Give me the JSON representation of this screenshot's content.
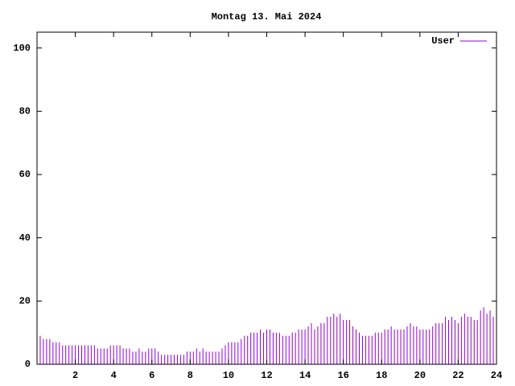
{
  "chart_data": {
    "type": "impulses",
    "title": "Montag 13. Mai 2024",
    "series": [
      {
        "name": "User",
        "color": "#9400d3",
        "x": [
          0,
          0.1667,
          0.3333,
          0.5,
          0.6667,
          0.8333,
          1,
          1.1667,
          1.3333,
          1.5,
          1.6667,
          1.8333,
          2,
          2.1667,
          2.3333,
          2.5,
          2.6667,
          2.8333,
          3,
          3.1667,
          3.3333,
          3.5,
          3.6667,
          3.8333,
          4,
          4.1667,
          4.3333,
          4.5,
          4.6667,
          4.8333,
          5,
          5.1667,
          5.3333,
          5.5,
          5.6667,
          5.8333,
          6,
          6.1667,
          6.3333,
          6.5,
          6.6667,
          6.8333,
          7,
          7.1667,
          7.3333,
          7.5,
          7.6667,
          7.8333,
          8,
          8.1667,
          8.3333,
          8.5,
          8.6667,
          8.8333,
          9,
          9.1667,
          9.3333,
          9.5,
          9.6667,
          9.8333,
          10,
          10.1667,
          10.3333,
          10.5,
          10.6667,
          10.8333,
          11,
          11.1667,
          11.3333,
          11.5,
          11.6667,
          11.8333,
          12,
          12.1667,
          12.3333,
          12.5,
          12.6667,
          12.8333,
          13,
          13.1667,
          13.3333,
          13.5,
          13.6667,
          13.8333,
          14,
          14.1667,
          14.3333,
          14.5,
          14.6667,
          14.8333,
          15,
          15.1667,
          15.3333,
          15.5,
          15.6667,
          15.8333,
          16,
          16.1667,
          16.3333,
          16.5,
          16.6667,
          16.8333,
          17,
          17.1667,
          17.3333,
          17.5,
          17.6667,
          17.8333,
          18,
          18.1667,
          18.3333,
          18.5,
          18.6667,
          18.8333,
          19,
          19.1667,
          19.3333,
          19.5,
          19.6667,
          19.8333,
          20,
          20.1667,
          20.3333,
          20.5,
          20.6667,
          20.8333,
          21,
          21.1667,
          21.3333,
          21.5,
          21.6667,
          21.8333,
          22,
          22.1667,
          22.3333,
          22.5,
          22.6667,
          22.8333,
          23,
          23.1667,
          23.3333,
          23.5,
          23.6667,
          23.8333
        ],
        "values": [
          11,
          9,
          8,
          8,
          8,
          7,
          7,
          7,
          6,
          6,
          6,
          6,
          6,
          6,
          6,
          6,
          6,
          6,
          6,
          5,
          5,
          5,
          5,
          6,
          6,
          6,
          6,
          5,
          5,
          5,
          4,
          4,
          5,
          4,
          4,
          5,
          5,
          5,
          4,
          3,
          3,
          3,
          3,
          3,
          3,
          3,
          3,
          4,
          4,
          4,
          5,
          4,
          5,
          4,
          4,
          4,
          4,
          4,
          5,
          6,
          7,
          7,
          7,
          7,
          8,
          9,
          9,
          10,
          10,
          10,
          11,
          10,
          11,
          11,
          10,
          10,
          10,
          9,
          9,
          9,
          10,
          10,
          11,
          11,
          11,
          12,
          13,
          11,
          12,
          13,
          13,
          15,
          15,
          16,
          15,
          16,
          14,
          14,
          14,
          12,
          11,
          10,
          9,
          9,
          9,
          9,
          10,
          10,
          10,
          11,
          11,
          12,
          11,
          11,
          11,
          11,
          12,
          13,
          12,
          12,
          11,
          11,
          11,
          11,
          12,
          13,
          13,
          13,
          15,
          14,
          15,
          14,
          13,
          15,
          16,
          15,
          15,
          14,
          14,
          17,
          18,
          16,
          17,
          15
        ]
      }
    ],
    "xlim": [
      0,
      24
    ],
    "xticks": [
      2,
      4,
      6,
      8,
      10,
      12,
      14,
      16,
      18,
      20,
      22,
      24
    ],
    "ylim": [
      0,
      105
    ],
    "yticks": [
      0,
      20,
      40,
      60,
      80,
      100
    ],
    "legend": "top-right"
  }
}
